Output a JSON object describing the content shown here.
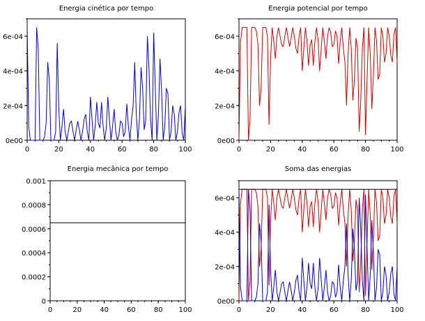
{
  "chart_data": [
    {
      "type": "line",
      "title": "Energia cinética por tempo",
      "xlim": [
        0,
        100
      ],
      "ylim": [
        0,
        0.0007
      ],
      "x_ticks": [
        "0",
        "20",
        "40",
        "60",
        "80",
        "100"
      ],
      "y_ticks": [
        "0e00",
        "2e-04",
        "4e-04",
        "6e-04"
      ],
      "series": [
        {
          "color": "#0000cc",
          "x": [
            0,
            1,
            2,
            3,
            4,
            5,
            6,
            7,
            8,
            9,
            10,
            11,
            12,
            13,
            14,
            15,
            16,
            17,
            18,
            19,
            20,
            21,
            22,
            23,
            24,
            25,
            26,
            27,
            28,
            29,
            30,
            31,
            32,
            33,
            34,
            35,
            36,
            37,
            38,
            39,
            40,
            41,
            42,
            43,
            44,
            45,
            46,
            47,
            48,
            49,
            50,
            51,
            52,
            53,
            54,
            55,
            56,
            57,
            58,
            59,
            60,
            61,
            62,
            63,
            64,
            65,
            66,
            67,
            68,
            69,
            70,
            71,
            72,
            73,
            74,
            75,
            76,
            77,
            78,
            79,
            80,
            81,
            82,
            83,
            84,
            85,
            86,
            87,
            88,
            89,
            90,
            91,
            92,
            93,
            94,
            95,
            96,
            97,
            98,
            99,
            100
          ],
          "y": [
            0.00065,
            8e-05,
            0.0,
            0.0,
            0.0,
            0.0,
            0.00065,
            0.00053,
            0.0,
            0.0,
            0.0,
            2e-05,
            0.0001,
            0.00045,
            0.00035,
            0.0,
            0.0,
            0.0,
            5e-05,
            0.00056,
            0.00018,
            0.0,
            8e-05,
            0.00018,
            5e-05,
            0.0,
            5e-05,
            0.0001,
            0.00011,
            5e-05,
            0.0,
            6e-05,
            0.00011,
            6e-05,
            0.0,
            5e-05,
            0.00012,
            0.00015,
            5e-05,
            0.0,
            0.00025,
            0.00012,
            0.0,
            8e-05,
            0.00022,
            0.0001,
            7e-05,
            0.00022,
            8e-05,
            0.0,
            7e-05,
            0.00025,
            0.00012,
            0.0,
            8e-05,
            0.00018,
            5e-05,
            0.0,
            3e-05,
            0.00011,
            0.0001,
            2e-05,
            5e-05,
            0.00021,
            8e-05,
            0.0,
            0.00012,
            0.0002,
            0.00045,
            0.00015,
            0.0,
            0.00012,
            0.00042,
            0.0003,
            6e-05,
            0.00012,
            0.0006,
            0.00042,
            0.00012,
            0.0,
            0.00062,
            0.0003,
            0.0,
            0.00015,
            0.00047,
            0.00028,
            0.0,
            8e-05,
            0.0003,
            0.00027,
            0.0,
            5e-05,
            0.0002,
            0.00015,
            0.0,
            5e-05,
            0.00016,
            0.0002,
            4e-05,
            0.0,
            0.0002
          ]
        }
      ]
    },
    {
      "type": "line",
      "title": "Energia potencial por tempo",
      "xlim": [
        0,
        100
      ],
      "ylim": [
        0,
        0.0007
      ],
      "x_ticks": [
        "0",
        "20",
        "40",
        "60",
        "80",
        "100"
      ],
      "y_ticks": [
        "0e00",
        "2e-04",
        "4e-04",
        "6e-04"
      ],
      "series": [
        {
          "color": "#cc0000",
          "x": [
            0,
            1,
            2,
            3,
            4,
            5,
            6,
            7,
            8,
            9,
            10,
            11,
            12,
            13,
            14,
            15,
            16,
            17,
            18,
            19,
            20,
            21,
            22,
            23,
            24,
            25,
            26,
            27,
            28,
            29,
            30,
            31,
            32,
            33,
            34,
            35,
            36,
            37,
            38,
            39,
            40,
            41,
            42,
            43,
            44,
            45,
            46,
            47,
            48,
            49,
            50,
            51,
            52,
            53,
            54,
            55,
            56,
            57,
            58,
            59,
            60,
            61,
            62,
            63,
            64,
            65,
            66,
            67,
            68,
            69,
            70,
            71,
            72,
            73,
            74,
            75,
            76,
            77,
            78,
            79,
            80,
            81,
            82,
            83,
            84,
            85,
            86,
            87,
            88,
            89,
            90,
            91,
            92,
            93,
            94,
            95,
            96,
            97,
            98,
            99,
            100
          ],
          "y": [
            0.0,
            0.00057,
            0.00065,
            0.00065,
            0.00065,
            0.00065,
            0.0,
            0.00012,
            0.00065,
            0.00065,
            0.00065,
            0.00063,
            0.00055,
            0.0002,
            0.0003,
            0.00065,
            0.00065,
            0.00065,
            0.0006,
            9e-05,
            0.00047,
            0.00065,
            0.00057,
            0.00047,
            0.0006,
            0.00065,
            0.0006,
            0.00055,
            0.00054,
            0.0006,
            0.00065,
            0.00059,
            0.00054,
            0.00059,
            0.00065,
            0.0006,
            0.00053,
            0.0005,
            0.0006,
            0.00065,
            0.0004,
            0.00053,
            0.00065,
            0.00057,
            0.00043,
            0.00055,
            0.00058,
            0.00043,
            0.00057,
            0.00065,
            0.00058,
            0.0004,
            0.00053,
            0.00065,
            0.00057,
            0.00047,
            0.0006,
            0.00065,
            0.00062,
            0.00054,
            0.00055,
            0.00063,
            0.0006,
            0.00044,
            0.00057,
            0.00065,
            0.00053,
            0.00045,
            0.0002,
            0.0005,
            0.00065,
            0.00053,
            0.00023,
            0.00035,
            0.00059,
            0.00053,
            5e-05,
            0.00023,
            0.00053,
            0.00065,
            3e-05,
            0.00035,
            0.00065,
            0.0005,
            0.00018,
            0.00037,
            0.00065,
            0.00057,
            0.00035,
            0.00038,
            0.00065,
            0.0006,
            0.00045,
            0.0005,
            0.00065,
            0.0006,
            0.00049,
            0.00045,
            0.00061,
            0.00065,
            0.00045
          ]
        }
      ]
    },
    {
      "type": "line",
      "title": "Energia mecânica por tempo",
      "xlim": [
        0,
        100
      ],
      "ylim": [
        0,
        0.001
      ],
      "x_ticks": [
        "0",
        "20",
        "40",
        "60",
        "80",
        "100"
      ],
      "y_ticks": [
        "0",
        "0.0002",
        "0.0004",
        "0.0006",
        "0.0008",
        "0.001"
      ],
      "series": [
        {
          "color": "#000000",
          "x": [
            0,
            100
          ],
          "y": [
            0.00065,
            0.00065
          ]
        }
      ]
    },
    {
      "type": "line",
      "title": "Soma das energias",
      "xlim": [
        0,
        100
      ],
      "ylim": [
        0,
        0.0007
      ],
      "x_ticks": [
        "0",
        "20",
        "40",
        "60",
        "80",
        "100"
      ],
      "y_ticks": [
        "0e00",
        "2e-04",
        "4e-04",
        "6e-04"
      ],
      "series": [
        {
          "color": "#cc0000",
          "ref": "potential"
        },
        {
          "color": "#0000cc",
          "ref": "kinetic"
        },
        {
          "color": "#000000",
          "ref": "mechanical"
        }
      ]
    }
  ]
}
